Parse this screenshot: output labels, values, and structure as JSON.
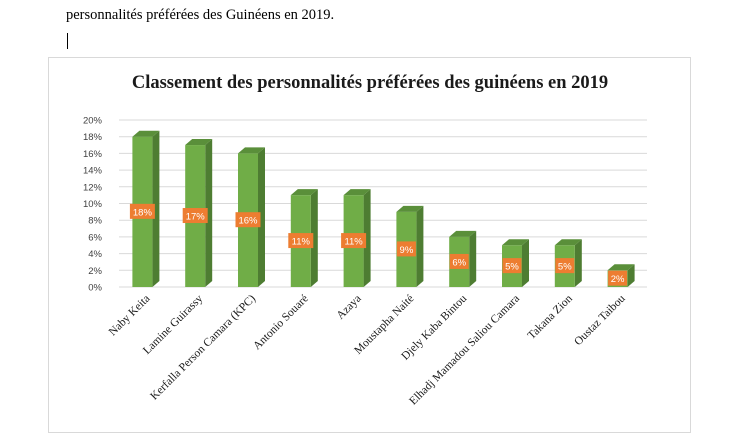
{
  "document": {
    "text_line": "personnalités préférées des Guinéens en 2019."
  },
  "chart_data": {
    "type": "bar",
    "title": "Classement des personnalités préférées des guinéens en 2019",
    "xlabel": "",
    "ylabel": "",
    "ylim": [
      0,
      20
    ],
    "y_ticks": [
      "0%",
      "2%",
      "4%",
      "6%",
      "8%",
      "10%",
      "12%",
      "14%",
      "16%",
      "18%",
      "20%"
    ],
    "grid": true,
    "legend": "none",
    "categories": [
      "Naby Keita",
      "Lamine Guirassy",
      "Kerfalla Person Camara (KPC)",
      "Antonio Souaré",
      "Azaya",
      "Moustapha Naité",
      "Djely Kaba Bintou",
      "Elhadj Mamadou Saliou Camara",
      "Takana Zion",
      "Oustaz Taibou"
    ],
    "values": [
      18,
      17,
      16,
      11,
      11,
      9,
      6,
      5,
      5,
      2
    ],
    "data_labels": [
      "18%",
      "17%",
      "16%",
      "11%",
      "11%",
      "9%",
      "6%",
      "5%",
      "5%",
      "2%"
    ],
    "colors": {
      "bar_front": "#70ad47",
      "bar_side": "#4e7d32",
      "bar_top": "#5a8f3a",
      "label_bg": "#ed7d31",
      "grid": "#d9d9d9"
    }
  }
}
